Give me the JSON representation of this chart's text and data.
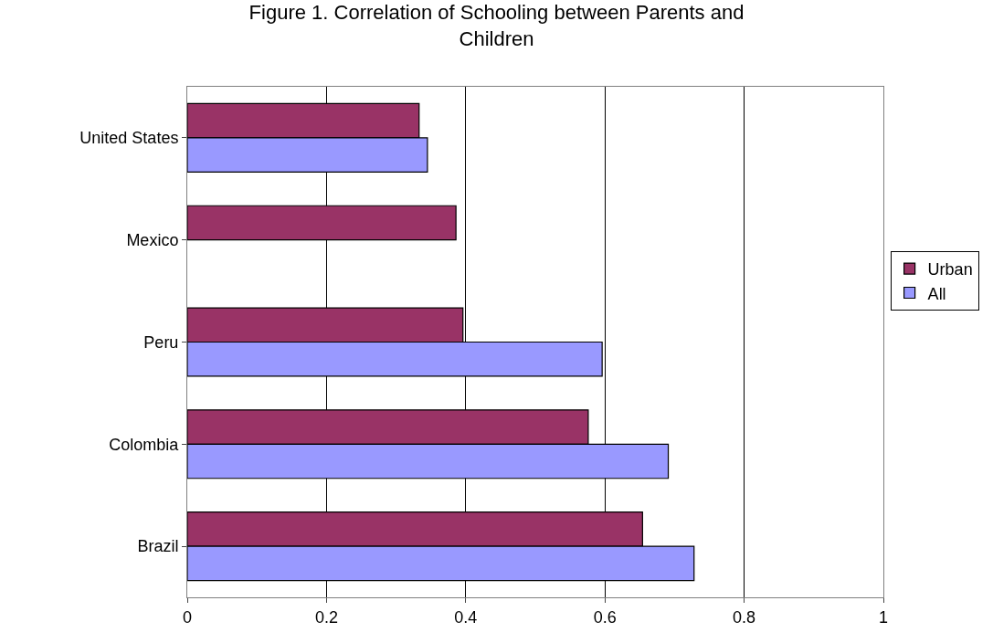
{
  "chart_data": {
    "type": "bar",
    "orientation": "horizontal",
    "title": "Figure 1. Correlation of Schooling between Parents and Children",
    "categories": [
      "United States",
      "Mexico",
      "Peru",
      "Colombia",
      "Brazil"
    ],
    "series": [
      {
        "name": "Urban",
        "color": "#993366",
        "values": [
          0.333,
          0.386,
          0.396,
          0.576,
          0.654
        ]
      },
      {
        "name": "All",
        "color": "#9999ff",
        "values": [
          0.345,
          null,
          0.596,
          0.691,
          0.728
        ]
      }
    ],
    "xlim": [
      0,
      1
    ],
    "xticks": [
      0,
      0.2,
      0.4,
      0.6,
      0.8,
      1
    ],
    "grid": "x",
    "legend": "right"
  }
}
